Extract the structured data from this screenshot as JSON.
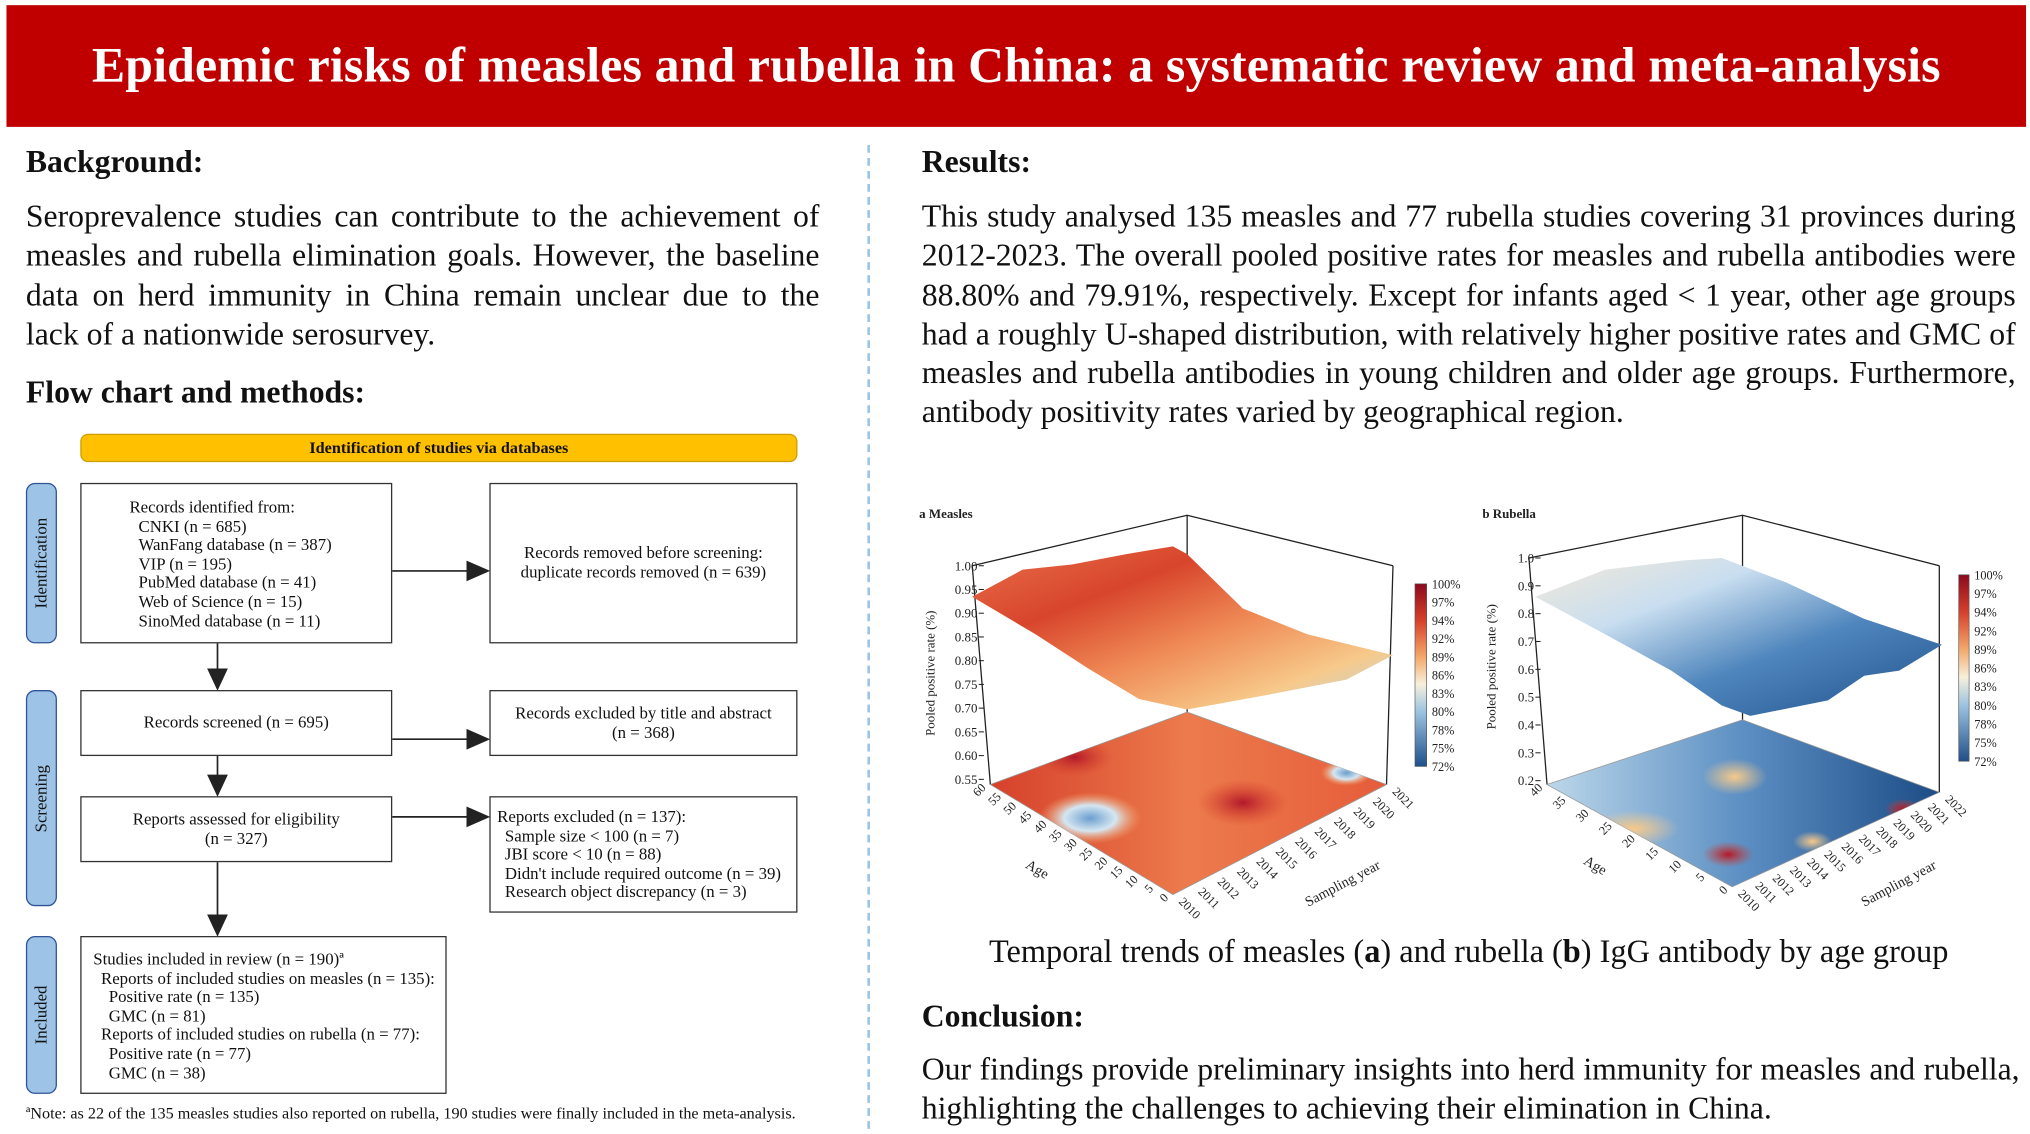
{
  "title": "Epidemic risks of measles and rubella in China: a systematic review and meta-analysis",
  "background": {
    "heading": "Background:",
    "text": "Seroprevalence studies can contribute to the achievement of measles and rubella elimination goals. However, the baseline data on herd immunity in China remain unclear due to the lack of a nationwide serosurvey."
  },
  "methods": {
    "heading": "Flow chart and methods:",
    "banner": "Identification of studies via databases",
    "stages": [
      "Identification",
      "Screening",
      "Included"
    ],
    "identified": {
      "title": "Records identified from:",
      "sources": [
        "CNKI (n = 685)",
        "WanFang database (n = 387)",
        "VIP (n = 195)",
        "PubMed database (n = 41)",
        "Web of Science (n = 15)",
        "SinoMed database (n = 11)"
      ]
    },
    "removed": [
      "Records removed before screening:",
      "duplicate records removed (n = 639)"
    ],
    "screened": "Records screened (n = 695)",
    "excluded_title": [
      "Records excluded by title and abstract",
      "(n = 368)"
    ],
    "assessed": [
      "Reports assessed for eligibility",
      "(n = 327)"
    ],
    "reports_excluded": [
      "Reports excluded (n = 137):",
      "Sample size < 100 (n = 7)",
      "JBI score < 10 (n = 88)",
      "Didn't include required outcome (n = 39)",
      "Research object discrepancy (n = 3)"
    ],
    "included": [
      "Studies included in review (n = 190)ª",
      "Reports of included studies on measles (n = 135):",
      "Positive rate (n = 135)",
      "GMC (n = 81)",
      "Reports of included studies on rubella (n = 77):",
      "Positive rate (n = 77)",
      "GMC (n = 38)"
    ],
    "note": "ªNote: as 22 of the 135 measles studies also reported on rubella, 190 studies were finally included in the meta-analysis."
  },
  "results": {
    "heading": "Results:",
    "text": "This study analysed 135 measles and 77  rubella studies covering 31 provinces during 2012-2023. The overall pooled positive rates for measles and rubella antibodies were 88.80% and 79.91%, respectively. Except for infants aged < 1 year, other age groups had a roughly U-shaped distribution, with relatively higher positive rates and GMC of measles and rubella antibodies in young children and older age groups. Furthermore, antibody positivity rates varied by geographical region."
  },
  "figure_caption": {
    "pre": "Temporal trends of measles (",
    "a": "a",
    "mid": ") and rubella (",
    "b": "b",
    "post": ") IgG antibody by age group"
  },
  "conclusion": {
    "heading": "Conclusion:",
    "text": "Our findings provide preliminary insights into herd immunity for measles and rubella, highlighting the challenges to achieving their elimination in China."
  },
  "charts": [
    {
      "title": "a Measles",
      "ylabel": "Pooled positive rate (%)",
      "xlabel": "Age",
      "zlabel": "Sampling year",
      "yticks": [
        "1.00",
        "0.95",
        "0.90",
        "0.85",
        "0.80",
        "0.75",
        "0.70",
        "0.65",
        "0.60",
        "0.55"
      ],
      "age_ticks": [
        "60",
        "55",
        "50",
        "45",
        "40",
        "35",
        "30",
        "25",
        "20",
        "15",
        "10",
        "5",
        "0"
      ],
      "year_ticks": [
        "2010",
        "2011",
        "2012",
        "2013",
        "2014",
        "2015",
        "2016",
        "2017",
        "2018",
        "2019",
        "2020",
        "2021"
      ],
      "colorbar": [
        "100%",
        "97%",
        "94%",
        "92%",
        "89%",
        "86%",
        "83%",
        "80%",
        "78%",
        "75%",
        "72%"
      ]
    },
    {
      "title": "b Rubella",
      "ylabel": "Pooled positive rate (%)",
      "xlabel": "Age",
      "zlabel": "Sampling year",
      "yticks": [
        "1.0",
        "0.9",
        "0.8",
        "0.7",
        "0.6",
        "0.5",
        "0.4",
        "0.3",
        "0.2"
      ],
      "age_ticks": [
        "40",
        "35",
        "30",
        "25",
        "20",
        "15",
        "10",
        "5",
        "0"
      ],
      "year_ticks": [
        "2010",
        "2011",
        "2012",
        "2013",
        "2014",
        "2015",
        "2016",
        "2017",
        "2018",
        "2019",
        "2020",
        "2021",
        "2022"
      ],
      "colorbar": [
        "100%",
        "97%",
        "94%",
        "92%",
        "89%",
        "86%",
        "83%",
        "80%",
        "78%",
        "75%",
        "72%"
      ]
    }
  ],
  "colors": {
    "banner": "#c00000",
    "stage": "#9dc3e6",
    "banner_yellow": "#ffc000"
  }
}
